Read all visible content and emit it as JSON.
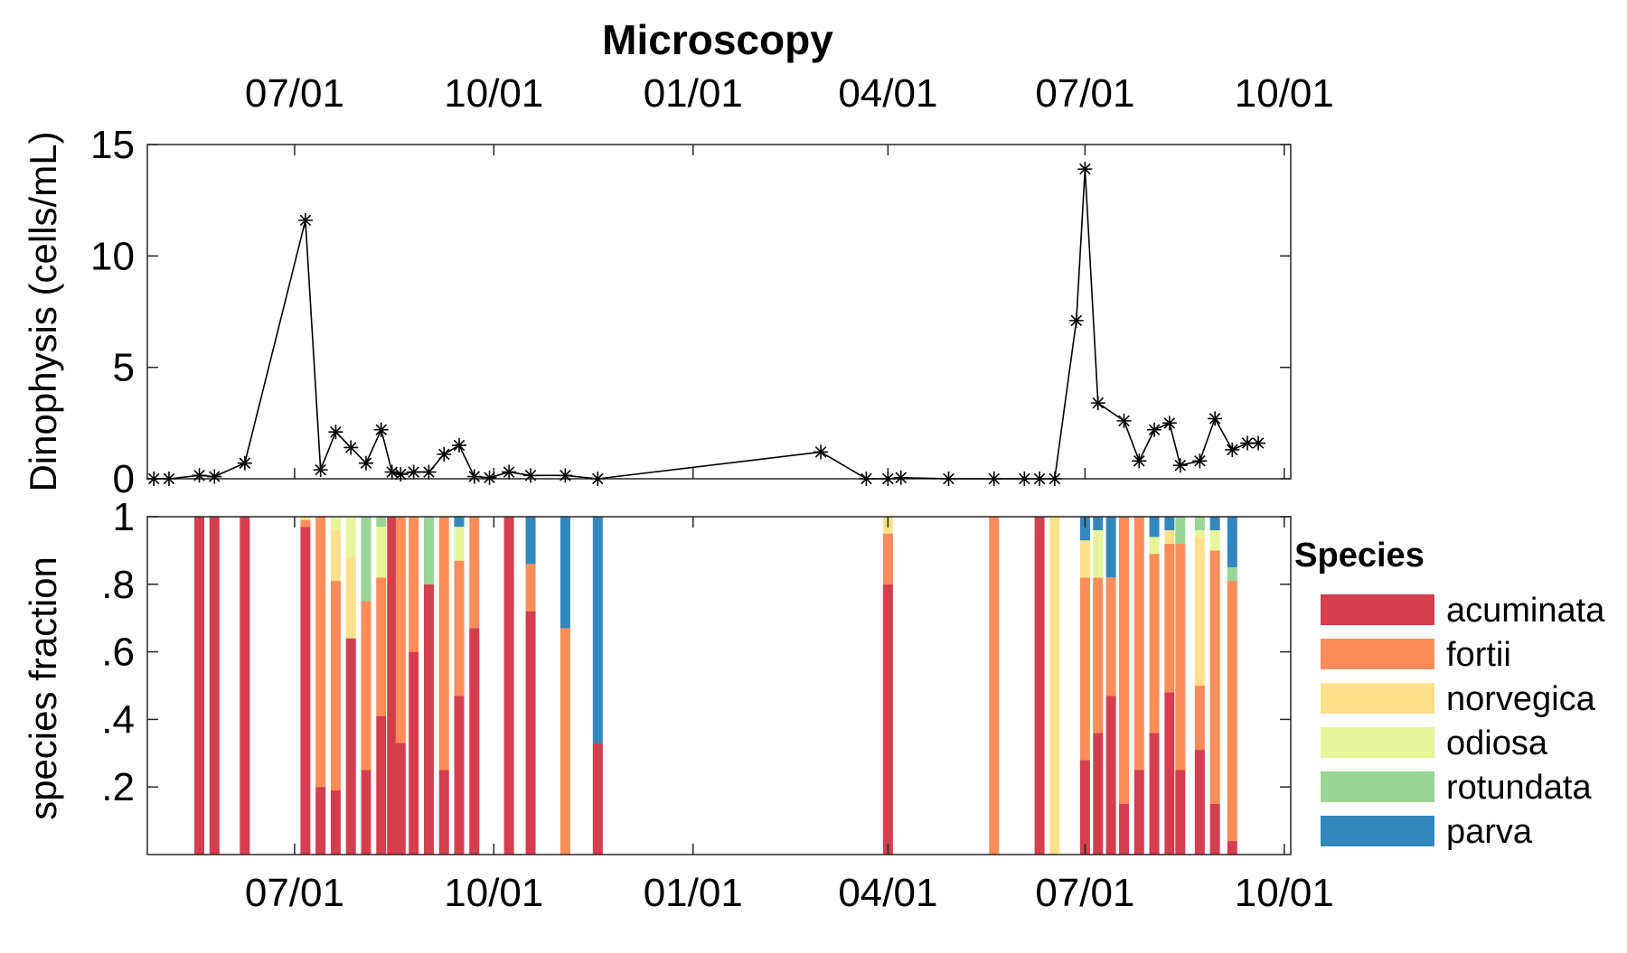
{
  "chart_data": [
    {
      "type": "line",
      "title": "Microscopy",
      "ylabel": "Dinophysis (cells/mL)",
      "ylim": [
        0,
        15
      ],
      "yticks": [
        0,
        5,
        10,
        15
      ],
      "xlim": [
        "2017-04-24",
        "2018-10-04"
      ],
      "xticks": [
        {
          "date": "2017-07-01",
          "label": "07/01"
        },
        {
          "date": "2017-10-01",
          "label": "10/01"
        },
        {
          "date": "2018-01-01",
          "label": "01/01"
        },
        {
          "date": "2018-04-01",
          "label": "04/01"
        },
        {
          "date": "2018-07-01",
          "label": "07/01"
        },
        {
          "date": "2018-10-01",
          "label": "10/01"
        }
      ],
      "marker": "asterisk",
      "color": "#000000",
      "series": [
        {
          "x": [
            "2017-04-27",
            "2017-05-04",
            "2017-05-18",
            "2017-05-25",
            "2017-06-08",
            "2017-07-06",
            "2017-07-13",
            "2017-07-20",
            "2017-07-27",
            "2017-08-03",
            "2017-08-10",
            "2017-08-15",
            "2017-08-19",
            "2017-08-25",
            "2017-09-01",
            "2017-09-08",
            "2017-09-15",
            "2017-09-22",
            "2017-09-29",
            "2017-10-08",
            "2017-10-18",
            "2017-11-03",
            "2017-11-18",
            "2018-03-01",
            "2018-03-22",
            "2018-04-01",
            "2018-04-07",
            "2018-04-29",
            "2018-05-20",
            "2018-06-03",
            "2018-06-10",
            "2018-06-17",
            "2018-06-27",
            "2018-07-01",
            "2018-07-07",
            "2018-07-19",
            "2018-07-26",
            "2018-08-02",
            "2018-08-09",
            "2018-08-14",
            "2018-08-23",
            "2018-08-30",
            "2018-09-07",
            "2018-09-14",
            "2018-09-19"
          ],
          "y": [
            0,
            0,
            0.15,
            0.1,
            0.7,
            11.6,
            0.4,
            2.1,
            1.4,
            0.7,
            2.2,
            0.3,
            0.2,
            0.3,
            0.3,
            1.1,
            1.5,
            0.1,
            0.05,
            0.3,
            0.15,
            0.15,
            0,
            1.2,
            0,
            0,
            0.05,
            0,
            0,
            0,
            0,
            0,
            7.1,
            13.9,
            3.4,
            2.6,
            0.8,
            2.2,
            2.5,
            0.6,
            0.8,
            2.7,
            1.3,
            1.6,
            1.6
          ]
        }
      ]
    },
    {
      "type": "bar",
      "stacked": true,
      "ylabel": "species fraction",
      "ylim": [
        0,
        1
      ],
      "yticks": [
        {
          "value": 0.2,
          "label": ".2"
        },
        {
          "value": 0.4,
          "label": ".4"
        },
        {
          "value": 0.6,
          "label": ".6"
        },
        {
          "value": 0.8,
          "label": ".8"
        },
        {
          "value": 1,
          "label": "1"
        }
      ],
      "xlim": [
        "2017-04-24",
        "2018-10-04"
      ],
      "xticks": [
        {
          "date": "2017-07-01",
          "label": "07/01"
        },
        {
          "date": "2017-10-01",
          "label": "10/01"
        },
        {
          "date": "2018-01-01",
          "label": "01/01"
        },
        {
          "date": "2018-04-01",
          "label": "04/01"
        },
        {
          "date": "2018-07-01",
          "label": "07/01"
        },
        {
          "date": "2018-10-01",
          "label": "10/01"
        }
      ],
      "legend": {
        "title": "Species",
        "position": "right",
        "entries": [
          {
            "name": "acuminata",
            "color": "#d53e4f"
          },
          {
            "name": "fortii",
            "color": "#fc8d59"
          },
          {
            "name": "norvegica",
            "color": "#fee08b"
          },
          {
            "name": "odiosa",
            "color": "#e6f598"
          },
          {
            "name": "rotundata",
            "color": "#99d594"
          },
          {
            "name": "parva",
            "color": "#3288bd"
          }
        ]
      },
      "dates": [
        "2017-05-18",
        "2017-05-25",
        "2017-06-08",
        "2017-07-06",
        "2017-07-13",
        "2017-07-20",
        "2017-07-27",
        "2017-08-03",
        "2017-08-10",
        "2017-08-15",
        "2017-08-19",
        "2017-08-25",
        "2017-09-01",
        "2017-09-08",
        "2017-09-15",
        "2017-09-22",
        "2017-10-08",
        "2017-10-18",
        "2017-11-03",
        "2017-11-18",
        "2018-04-01",
        "2018-05-20",
        "2018-06-10",
        "2018-06-17",
        "2018-07-01",
        "2018-07-07",
        "2018-07-13",
        "2018-07-19",
        "2018-07-26",
        "2018-08-02",
        "2018-08-09",
        "2018-08-14",
        "2018-08-23",
        "2018-08-30",
        "2018-09-07",
        "2018-09-14",
        "2018-09-19"
      ],
      "series": [
        {
          "name": "acuminata",
          "values": [
            1,
            1,
            1,
            0.97,
            0.2,
            0.19,
            0.64,
            0.25,
            0.41,
            1,
            0.33,
            0.6,
            0.8,
            0.25,
            0.47,
            0.67,
            1,
            0.72,
            0,
            0.33,
            0.8,
            0,
            1,
            0,
            0.28,
            0.36,
            0.47,
            0.15,
            0.25,
            0.36,
            0.48,
            0.25,
            0.31,
            0.15,
            0.04,
            0,
            0
          ]
        },
        {
          "name": "fortii",
          "values": [
            0,
            0,
            0,
            0.02,
            0.8,
            0.62,
            0,
            0.5,
            0.41,
            0,
            0.67,
            0.4,
            0,
            0.75,
            0.4,
            0.33,
            0,
            0.14,
            0.67,
            0,
            0.15,
            1,
            0,
            0,
            0.54,
            0.46,
            0.35,
            0.85,
            0.75,
            0.53,
            0.44,
            0.67,
            0.19,
            0.75,
            0.77,
            0,
            0
          ]
        },
        {
          "name": "norvegica",
          "values": [
            0,
            0,
            0,
            0.01,
            0,
            0.15,
            0.24,
            0,
            0,
            0,
            0,
            0,
            0,
            0,
            0,
            0,
            0,
            0,
            0,
            0,
            0.05,
            0,
            0,
            1,
            0.11,
            0,
            0,
            0,
            0,
            0,
            0.04,
            0,
            0.44,
            0,
            0,
            0,
            0
          ]
        },
        {
          "name": "odiosa",
          "values": [
            0,
            0,
            0,
            0,
            0,
            0.04,
            0.12,
            0,
            0.15,
            0,
            0,
            0,
            0,
            0,
            0.1,
            0,
            0,
            0,
            0,
            0,
            0,
            0,
            0,
            0,
            0,
            0.14,
            0,
            0,
            0,
            0.05,
            0,
            0,
            0.02,
            0.06,
            0,
            0,
            0
          ]
        },
        {
          "name": "rotundata",
          "values": [
            0,
            0,
            0,
            0,
            0,
            0,
            0,
            0.25,
            0.03,
            0,
            0,
            0,
            0.2,
            0,
            0,
            0,
            0,
            0,
            0,
            0,
            0,
            0,
            0,
            0,
            0,
            0,
            0,
            0,
            0,
            0,
            0,
            0.08,
            0.04,
            0,
            0.04,
            0,
            0
          ]
        },
        {
          "name": "parva",
          "values": [
            0,
            0,
            0,
            0,
            0,
            0,
            0,
            0,
            0,
            0,
            0,
            0,
            0,
            0,
            0.03,
            0,
            0,
            0.14,
            0.33,
            0.67,
            0,
            0,
            0,
            0,
            0.07,
            0.04,
            0.18,
            0,
            0,
            0.06,
            0.04,
            0,
            0,
            0.04,
            0.15,
            0,
            0
          ]
        }
      ]
    }
  ]
}
